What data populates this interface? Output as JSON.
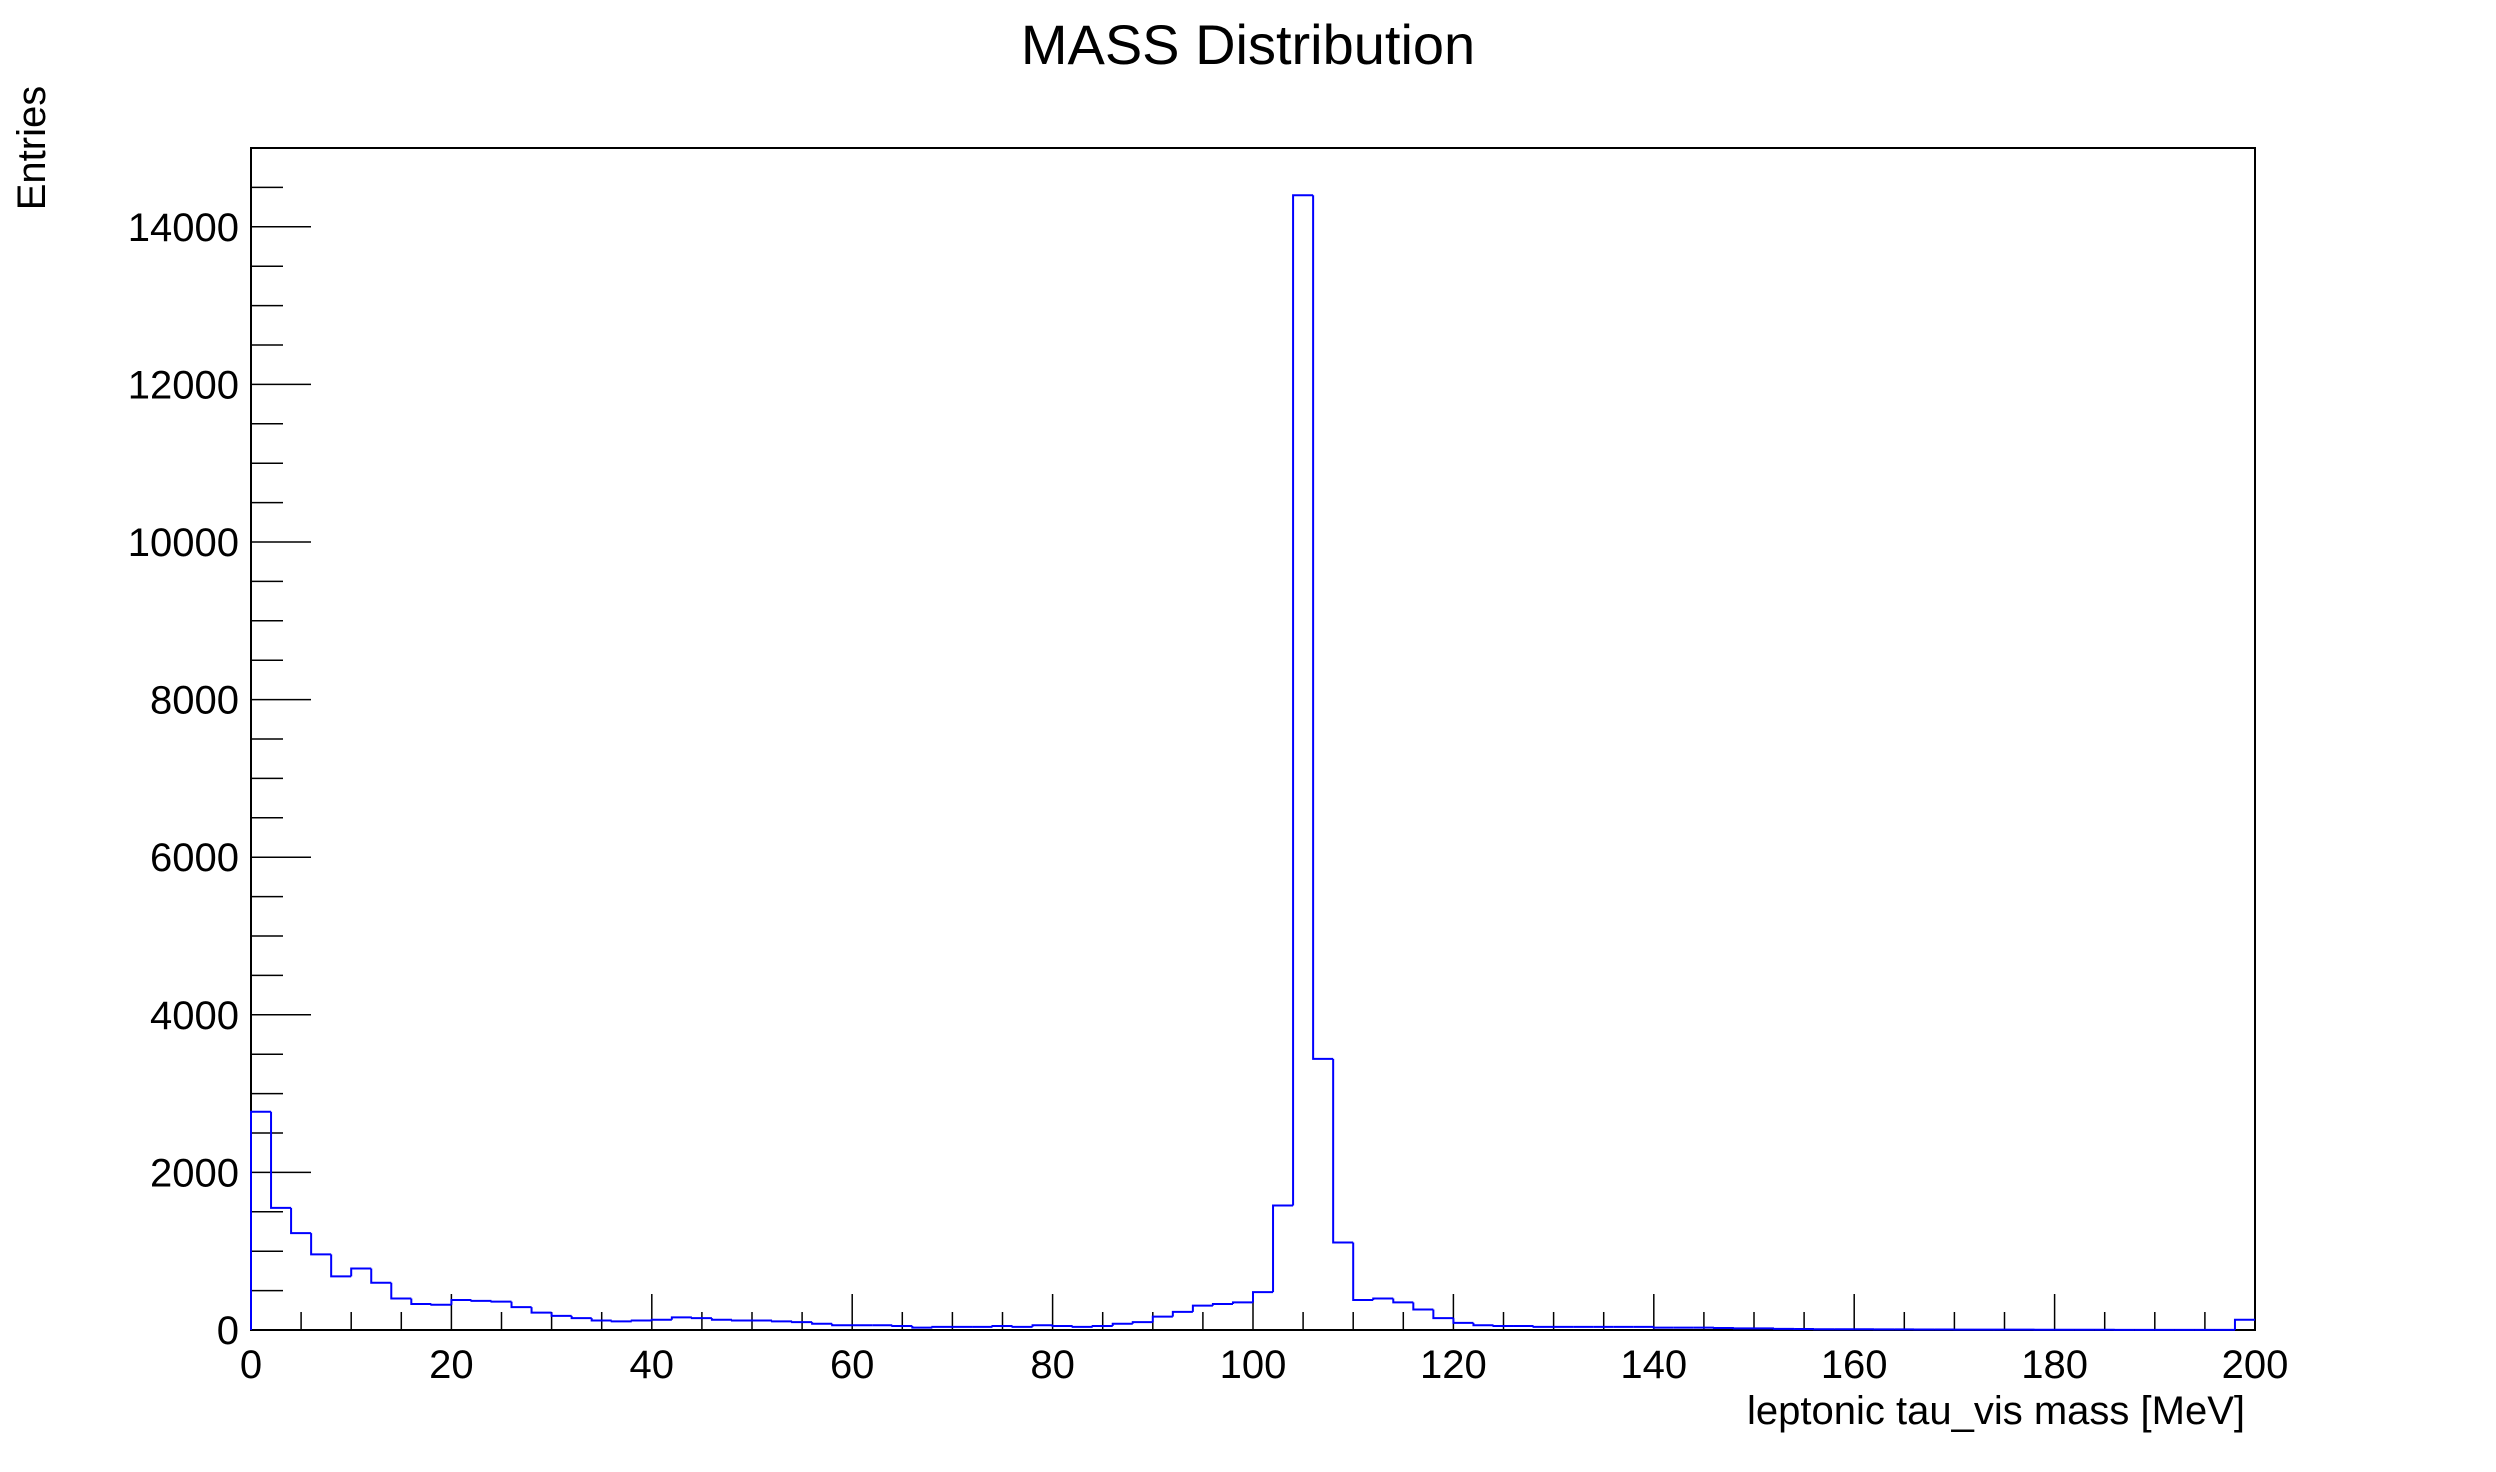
{
  "chart_data": {
    "type": "histogram",
    "title": "MASS Distribution",
    "xlabel": "leptonic tau_vis mass [MeV]",
    "ylabel": "Entries",
    "xlim": [
      0,
      200
    ],
    "ylim": [
      0,
      15000
    ],
    "x_ticks": [
      0,
      20,
      40,
      60,
      80,
      100,
      120,
      140,
      160,
      180,
      200
    ],
    "y_ticks": [
      0,
      2000,
      4000,
      6000,
      8000,
      10000,
      12000,
      14000
    ],
    "grid": false,
    "legend": false,
    "line_color": "#0000ff",
    "bin_width": 2,
    "bin_edges_start": 0,
    "values": [
      2770,
      1550,
      1230,
      960,
      680,
      780,
      600,
      400,
      330,
      320,
      380,
      370,
      360,
      290,
      220,
      180,
      150,
      120,
      110,
      120,
      130,
      160,
      150,
      130,
      120,
      120,
      110,
      100,
      80,
      60,
      60,
      60,
      50,
      30,
      40,
      40,
      40,
      50,
      40,
      60,
      50,
      40,
      50,
      80,
      100,
      170,
      230,
      310,
      330,
      350,
      480,
      1580,
      14400,
      3440,
      1110,
      380,
      400,
      350,
      260,
      150,
      90,
      60,
      50,
      50,
      40,
      40,
      40,
      40,
      40,
      40,
      30,
      30,
      30,
      25,
      20,
      20,
      15,
      12,
      10,
      10,
      10,
      8,
      8,
      6,
      6,
      5,
      5,
      4,
      4,
      3,
      3,
      3,
      3,
      2,
      2,
      2,
      2,
      2,
      2,
      130
    ]
  }
}
